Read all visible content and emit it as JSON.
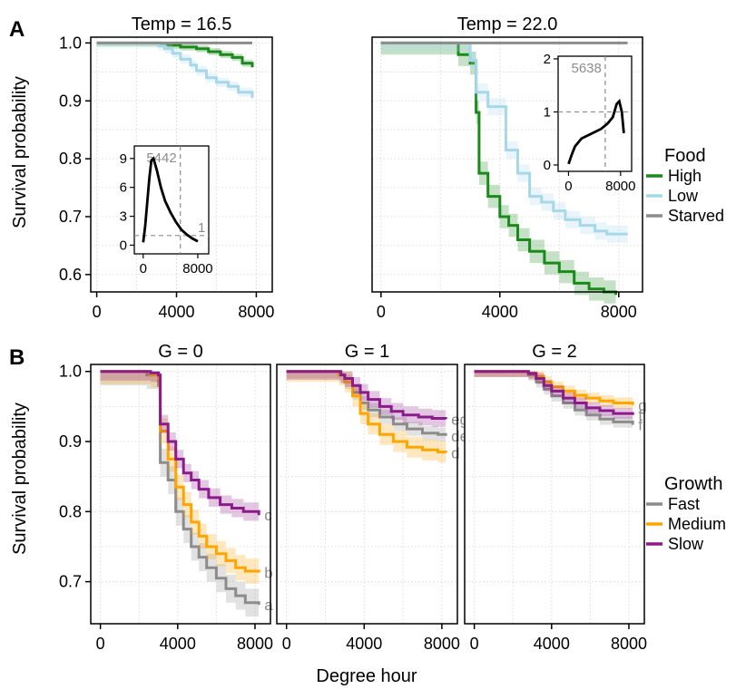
{
  "figure": {
    "panel_a_letter": "A",
    "panel_b_letter": "B",
    "ylabel": "Survival probability",
    "xlabel": "Degree hour"
  },
  "colors": {
    "High": "#1a8a1a",
    "Low": "#a6d8ea",
    "Starved": "#8c8c8c",
    "Fast": "#8c8c8c",
    "Medium": "#ffa500",
    "Slow": "#8b1a8b",
    "grid": "#e4e4e4",
    "ref_line": "#8c8c8c"
  },
  "chart_data": [
    {
      "type": "line",
      "subtype": "step-survival",
      "title": "Temp = 16.5",
      "ylim": [
        0.57,
        1.01
      ],
      "yticks": [
        "0.6",
        "0.7",
        "0.8",
        "0.9",
        "1.0"
      ],
      "xlim": [
        -300,
        8800
      ],
      "xticks": [
        "0",
        "4000",
        "8000"
      ],
      "grid": true,
      "legend_title": "Food",
      "legend_position": "right",
      "series": [
        {
          "name": "High",
          "ci": 0.006,
          "points": [
            [
              0,
              1.0
            ],
            [
              3000,
              1.0
            ],
            [
              3200,
              0.998
            ],
            [
              3600,
              0.996
            ],
            [
              4200,
              0.993
            ],
            [
              5000,
              0.99
            ],
            [
              5600,
              0.985
            ],
            [
              6200,
              0.98
            ],
            [
              6800,
              0.975
            ],
            [
              7300,
              0.965
            ],
            [
              7800,
              0.958
            ]
          ]
        },
        {
          "name": "Low",
          "ci": 0.008,
          "points": [
            [
              0,
              1.0
            ],
            [
              2800,
              1.0
            ],
            [
              3100,
              0.995
            ],
            [
              3400,
              0.99
            ],
            [
              3800,
              0.982
            ],
            [
              4200,
              0.972
            ],
            [
              4700,
              0.962
            ],
            [
              5000,
              0.952
            ],
            [
              5500,
              0.94
            ],
            [
              6000,
              0.932
            ],
            [
              6600,
              0.925
            ],
            [
              7100,
              0.915
            ],
            [
              7800,
              0.905
            ]
          ]
        },
        {
          "name": "Starved",
          "ci": 0,
          "points": [
            [
              0,
              1.0
            ],
            [
              7800,
              1.0
            ]
          ]
        }
      ],
      "inset": {
        "curve": [
          [
            0,
            0.3
          ],
          [
            300,
            2
          ],
          [
            600,
            4.5
          ],
          [
            900,
            7
          ],
          [
            1200,
            8.8
          ],
          [
            1500,
            9
          ],
          [
            2000,
            7.8
          ],
          [
            2600,
            6
          ],
          [
            3200,
            4.6
          ],
          [
            4000,
            3.4
          ],
          [
            4800,
            2.4
          ],
          [
            5600,
            1.6
          ],
          [
            6400,
            1.1
          ],
          [
            7200,
            0.7
          ],
          [
            8000,
            0.4
          ]
        ],
        "xlim": [
          -1300,
          9600
        ],
        "ylim": [
          -0.9,
          10.3
        ],
        "xticks": [
          "0",
          "8000"
        ],
        "yticks": [
          "0",
          "3",
          "6",
          "9"
        ],
        "vline_x": 5442,
        "vline_label": "5442",
        "hline_y": 1,
        "hline_label": "1"
      }
    },
    {
      "type": "line",
      "subtype": "step-survival",
      "title": "Temp = 22.0",
      "ylim": [
        0.57,
        1.01
      ],
      "xlim": [
        -300,
        8800
      ],
      "xticks": [
        "0",
        "4000",
        "8000"
      ],
      "grid": true,
      "series": [
        {
          "name": "High",
          "ci": 0.02,
          "points": [
            [
              0,
              1.0
            ],
            [
              2100,
              1.0
            ],
            [
              2600,
              0.98
            ],
            [
              3000,
              0.965
            ],
            [
              3200,
              0.88
            ],
            [
              3300,
              0.775
            ],
            [
              3600,
              0.735
            ],
            [
              4000,
              0.7
            ],
            [
              4300,
              0.685
            ],
            [
              4600,
              0.66
            ],
            [
              5000,
              0.64
            ],
            [
              5500,
              0.62
            ],
            [
              6000,
              0.605
            ],
            [
              6500,
              0.585
            ],
            [
              7000,
              0.575
            ],
            [
              7500,
              0.57
            ],
            [
              7900,
              0.565
            ]
          ]
        },
        {
          "name": "Low",
          "ci": 0.015,
          "points": [
            [
              0,
              1.0
            ],
            [
              2600,
              1.0
            ],
            [
              3000,
              0.97
            ],
            [
              3200,
              0.915
            ],
            [
              3600,
              0.89
            ],
            [
              4200,
              0.815
            ],
            [
              4600,
              0.775
            ],
            [
              5000,
              0.735
            ],
            [
              5400,
              0.725
            ],
            [
              5800,
              0.71
            ],
            [
              6200,
              0.695
            ],
            [
              6700,
              0.685
            ],
            [
              7200,
              0.675
            ],
            [
              7600,
              0.67
            ],
            [
              8300,
              0.67
            ]
          ]
        },
        {
          "name": "Starved",
          "ci": 0,
          "points": [
            [
              0,
              1.0
            ],
            [
              8300,
              1.0
            ]
          ]
        }
      ],
      "inset": {
        "curve": [
          [
            0,
            0.02
          ],
          [
            500,
            0.2
          ],
          [
            1000,
            0.35
          ],
          [
            2000,
            0.5
          ],
          [
            3000,
            0.56
          ],
          [
            4000,
            0.62
          ],
          [
            5000,
            0.68
          ],
          [
            6000,
            0.78
          ],
          [
            6800,
            0.9
          ],
          [
            7400,
            1.15
          ],
          [
            7800,
            1.2
          ],
          [
            8200,
            1.0
          ],
          [
            8500,
            0.6
          ]
        ],
        "xlim": [
          -1600,
          9700
        ],
        "ylim": [
          -0.12,
          2.05
        ],
        "xticks": [
          "0",
          "8000"
        ],
        "yticks": [
          "0",
          "1",
          "2"
        ],
        "vline_x": 5638,
        "vline_label": "5638",
        "hline_y": 1
      }
    },
    {
      "type": "line",
      "subtype": "step-survival",
      "title": "G = 0",
      "ylim": [
        0.64,
        1.01
      ],
      "yticks": [
        "0.7",
        "0.8",
        "0.9",
        "1.0"
      ],
      "xlim": [
        -500,
        8800
      ],
      "xticks": [
        "0",
        "4000",
        "8000"
      ],
      "grid": true,
      "legend_title": "Growth",
      "legend_position": "right",
      "series": [
        {
          "name": "Fast",
          "ci": 0.02,
          "end_label": "a",
          "points": [
            [
              0,
              1.0
            ],
            [
              2000,
              1.0
            ],
            [
              2400,
              0.995
            ],
            [
              3000,
              0.98
            ],
            [
              3100,
              0.87
            ],
            [
              3500,
              0.845
            ],
            [
              3900,
              0.8
            ],
            [
              4300,
              0.775
            ],
            [
              4700,
              0.75
            ],
            [
              5100,
              0.735
            ],
            [
              5500,
              0.72
            ],
            [
              6000,
              0.705
            ],
            [
              6500,
              0.69
            ],
            [
              7000,
              0.68
            ],
            [
              7500,
              0.67
            ],
            [
              8200,
              0.667
            ]
          ]
        },
        {
          "name": "Medium",
          "ci": 0.018,
          "end_label": "b",
          "points": [
            [
              0,
              1.0
            ],
            [
              2200,
              1.0
            ],
            [
              2600,
              0.995
            ],
            [
              3000,
              0.99
            ],
            [
              3100,
              0.915
            ],
            [
              3500,
              0.875
            ],
            [
              3900,
              0.835
            ],
            [
              4300,
              0.81
            ],
            [
              4700,
              0.785
            ],
            [
              5100,
              0.765
            ],
            [
              5500,
              0.75
            ],
            [
              6000,
              0.74
            ],
            [
              6500,
              0.73
            ],
            [
              7000,
              0.72
            ],
            [
              7500,
              0.715
            ],
            [
              8200,
              0.713
            ]
          ]
        },
        {
          "name": "Slow",
          "ci": 0.013,
          "end_label": "c",
          "points": [
            [
              0,
              1.0
            ],
            [
              2200,
              1.0
            ],
            [
              2600,
              0.998
            ],
            [
              3000,
              0.995
            ],
            [
              3100,
              0.925
            ],
            [
              3500,
              0.9
            ],
            [
              3900,
              0.875
            ],
            [
              4300,
              0.855
            ],
            [
              4700,
              0.845
            ],
            [
              5100,
              0.832
            ],
            [
              5600,
              0.82
            ],
            [
              6200,
              0.81
            ],
            [
              6800,
              0.805
            ],
            [
              7400,
              0.8
            ],
            [
              8200,
              0.795
            ]
          ]
        }
      ]
    },
    {
      "type": "line",
      "subtype": "step-survival",
      "title": "G = 1",
      "ylim": [
        0.64,
        1.01
      ],
      "xlim": [
        -500,
        8800
      ],
      "xticks": [
        "0",
        "4000",
        "8000"
      ],
      "grid": true,
      "series": [
        {
          "name": "Fast",
          "ci": 0.01,
          "end_label": "de",
          "points": [
            [
              0,
              1.0
            ],
            [
              2200,
              1.0
            ],
            [
              2700,
              0.995
            ],
            [
              3000,
              0.985
            ],
            [
              3400,
              0.97
            ],
            [
              3800,
              0.955
            ],
            [
              4200,
              0.945
            ],
            [
              4800,
              0.935
            ],
            [
              5500,
              0.925
            ],
            [
              6200,
              0.918
            ],
            [
              7000,
              0.912
            ],
            [
              7800,
              0.91
            ],
            [
              8200,
              0.908
            ]
          ]
        },
        {
          "name": "Medium",
          "ci": 0.015,
          "end_label": "d",
          "points": [
            [
              0,
              1.0
            ],
            [
              2200,
              1.0
            ],
            [
              2700,
              0.995
            ],
            [
              3000,
              0.985
            ],
            [
              3400,
              0.965
            ],
            [
              3800,
              0.94
            ],
            [
              4200,
              0.925
            ],
            [
              4800,
              0.91
            ],
            [
              5500,
              0.9
            ],
            [
              6200,
              0.892
            ],
            [
              7000,
              0.888
            ],
            [
              7800,
              0.885
            ],
            [
              8200,
              0.884
            ]
          ]
        },
        {
          "name": "Slow",
          "ci": 0.012,
          "end_label": "eg",
          "points": [
            [
              0,
              1.0
            ],
            [
              2400,
              1.0
            ],
            [
              2800,
              0.995
            ],
            [
              3000,
              0.99
            ],
            [
              3400,
              0.98
            ],
            [
              3800,
              0.97
            ],
            [
              4200,
              0.96
            ],
            [
              4800,
              0.95
            ],
            [
              5400,
              0.943
            ],
            [
              6000,
              0.938
            ],
            [
              6800,
              0.935
            ],
            [
              7500,
              0.933
            ],
            [
              8200,
              0.932
            ]
          ]
        }
      ]
    },
    {
      "type": "line",
      "subtype": "step-survival",
      "title": "G = 2",
      "ylim": [
        0.64,
        1.01
      ],
      "xlim": [
        -500,
        8800
      ],
      "xticks": [
        "0",
        "4000",
        "8000"
      ],
      "grid": true,
      "series": [
        {
          "name": "Fast",
          "ci": 0.008,
          "end_label": "f",
          "points": [
            [
              0,
              1.0
            ],
            [
              2400,
              1.0
            ],
            [
              2800,
              0.995
            ],
            [
              3200,
              0.985
            ],
            [
              3600,
              0.975
            ],
            [
              4000,
              0.965
            ],
            [
              4600,
              0.955
            ],
            [
              5200,
              0.945
            ],
            [
              5800,
              0.938
            ],
            [
              6500,
              0.932
            ],
            [
              7200,
              0.928
            ],
            [
              8200,
              0.924
            ]
          ]
        },
        {
          "name": "Medium",
          "ci": 0.008,
          "end_label": "g",
          "points": [
            [
              0,
              1.0
            ],
            [
              2400,
              1.0
            ],
            [
              2800,
              0.998
            ],
            [
              3200,
              0.993
            ],
            [
              3600,
              0.985
            ],
            [
              4000,
              0.978
            ],
            [
              4600,
              0.972
            ],
            [
              5200,
              0.966
            ],
            [
              5800,
              0.962
            ],
            [
              6500,
              0.958
            ],
            [
              7200,
              0.955
            ],
            [
              8200,
              0.952
            ]
          ]
        },
        {
          "name": "Slow",
          "ci": 0.008,
          "end_label": "f",
          "points": [
            [
              0,
              1.0
            ],
            [
              2400,
              1.0
            ],
            [
              2800,
              0.997
            ],
            [
              3200,
              0.99
            ],
            [
              3600,
              0.98
            ],
            [
              4000,
              0.972
            ],
            [
              4600,
              0.962
            ],
            [
              5200,
              0.955
            ],
            [
              5800,
              0.948
            ],
            [
              6500,
              0.944
            ],
            [
              7200,
              0.94
            ],
            [
              8200,
              0.938
            ]
          ]
        }
      ]
    }
  ]
}
